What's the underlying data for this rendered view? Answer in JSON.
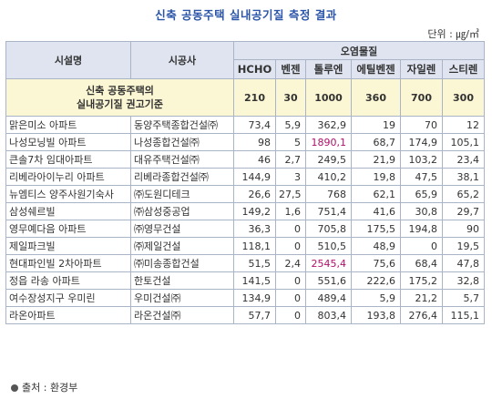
{
  "title": "신축 공동주택 실내공기질 측정 결과",
  "unit": "단위 : ㎍/㎥",
  "headers": {
    "facility": "시설명",
    "builder": "시공사",
    "pollutants_group": "오염물질",
    "pollutants": [
      "HCHO",
      "벤젠",
      "톨루엔",
      "에틸벤젠",
      "자일렌",
      "스티렌"
    ]
  },
  "standard": {
    "label_line1": "신축 공동주택의",
    "label_line2": "실내공기질 권고기준",
    "values": [
      "210",
      "30",
      "1000",
      "360",
      "700",
      "300"
    ]
  },
  "rows": [
    {
      "facility": "맑은미소 아파트",
      "builder": "동양주택종합건설㈜",
      "values": [
        "73,4",
        "5,9",
        "362,9",
        "19",
        "70",
        "12"
      ]
    },
    {
      "facility": "나성모닝빌 아파트",
      "builder": "나성종합건설㈜",
      "values": [
        "98",
        "5",
        "1890,1",
        "68,7",
        "174,9",
        "105,1"
      ]
    },
    {
      "facility": "큰솔7차 임대아파트",
      "builder": "대유주택건설㈜",
      "values": [
        "46",
        "2,7",
        "249,5",
        "21,9",
        "103,2",
        "23,4"
      ]
    },
    {
      "facility": "리베라아이누리 아파트",
      "builder": "리베라종합건설㈜",
      "values": [
        "144,9",
        "3",
        "410,2",
        "19,8",
        "47,5",
        "38,1"
      ]
    },
    {
      "facility": "뉴엠티스 양주사원기숙사",
      "builder": "㈜도원디테크",
      "values": [
        "26,6",
        "27,5",
        "768",
        "62,1",
        "65,9",
        "65,2"
      ]
    },
    {
      "facility": "삼성쉐르빌",
      "builder": "㈜삼성중공업",
      "values": [
        "149,2",
        "1,6",
        "751,4",
        "41,6",
        "30,8",
        "29,7"
      ]
    },
    {
      "facility": "영무예다음 아파트",
      "builder": "㈜영무건설",
      "values": [
        "36,3",
        "0",
        "705,8",
        "175,5",
        "194,8",
        "90"
      ]
    },
    {
      "facility": "제일파크빌",
      "builder": "㈜제일건설",
      "values": [
        "118,1",
        "0",
        "510,5",
        "48,9",
        "0",
        "19,5"
      ]
    },
    {
      "facility": "현대파인빌 2차아파트",
      "builder": "㈜미송종합건설",
      "values": [
        "51,5",
        "2,4",
        "2545,4",
        "75,6",
        "68,4",
        "47,8"
      ]
    },
    {
      "facility": "정읍 라송 아파트",
      "builder": "한토건설",
      "values": [
        "141,5",
        "0",
        "551,6",
        "222,6",
        "175,2",
        "32,8"
      ]
    },
    {
      "facility": "여수장성지구 우미린",
      "builder": "우미건설㈜",
      "values": [
        "134,9",
        "0",
        "489,4",
        "5,9",
        "21,2",
        "5,7"
      ]
    },
    {
      "facility": "라온아파트",
      "builder": "라온건설㈜",
      "values": [
        "57,7",
        "0",
        "803,4",
        "193,8",
        "276,4",
        "115,1"
      ]
    }
  ],
  "highlight_color": "#b0106a",
  "source": "출처 : 환경부"
}
